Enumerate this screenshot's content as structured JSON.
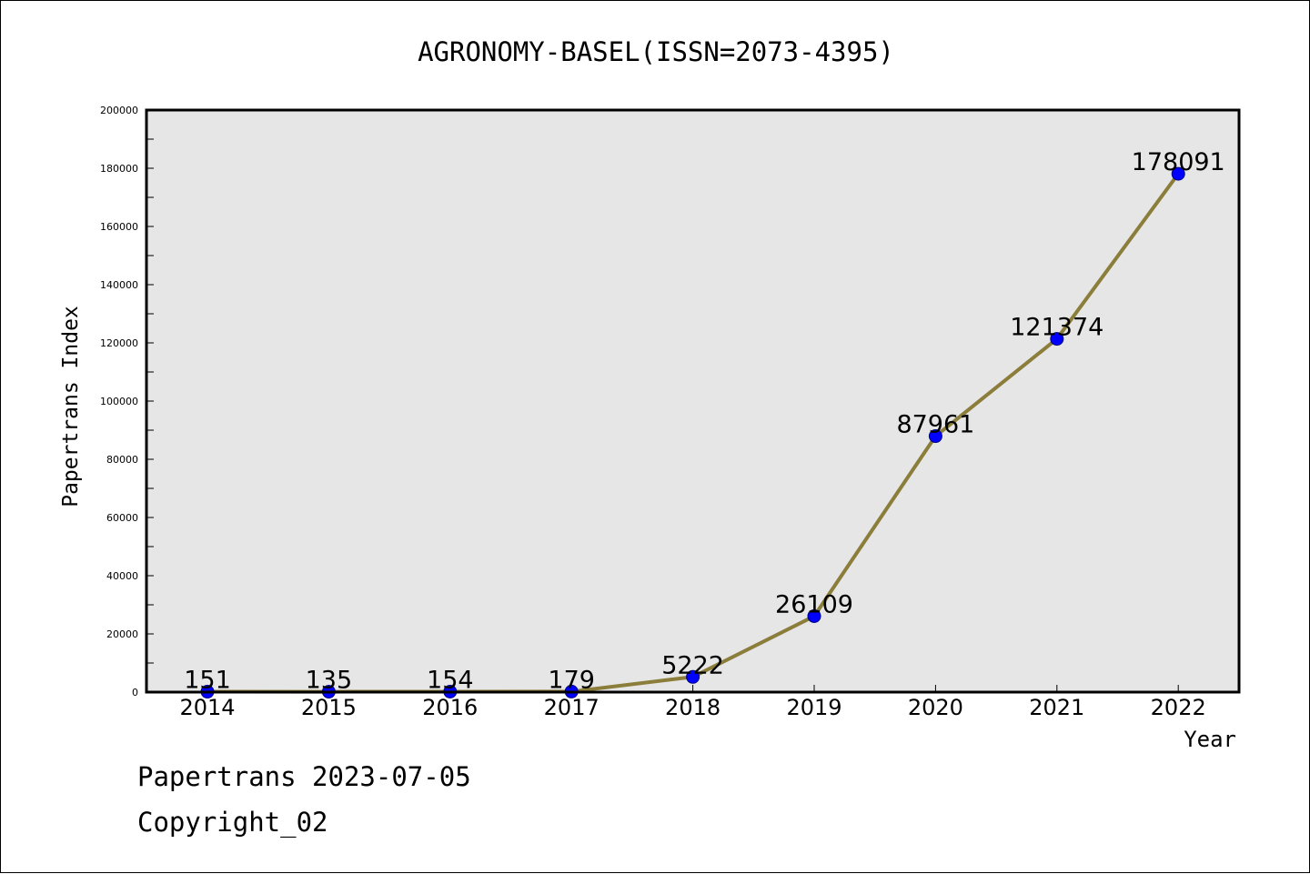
{
  "chart_data": {
    "type": "line",
    "title": "AGRONOMY-BASEL(ISSN=2073-4395)",
    "xlabel": "Year",
    "ylabel": "Papertrans Index",
    "x": [
      "2014",
      "2015",
      "2016",
      "2017",
      "2018",
      "2019",
      "2020",
      "2021",
      "2022"
    ],
    "series": [
      {
        "values": [
          151,
          135,
          154,
          179,
          5222,
          26109,
          87961,
          121374,
          178091
        ]
      }
    ],
    "data_labels": [
      "151",
      "135",
      "154",
      "179",
      "5222",
      "26109",
      "87961",
      "121374",
      "178091"
    ],
    "yticks": [
      "0",
      "20000",
      "40000",
      "60000",
      "80000",
      "100000",
      "120000",
      "140000",
      "160000",
      "180000",
      "200000"
    ],
    "ylim": [
      0,
      200000
    ],
    "grid": false,
    "legend": "none",
    "colors": {
      "plot_background": "#e6e6e6",
      "line": "#8b7d3a",
      "marker": "#0000ff",
      "marker_edge": "#000080"
    }
  },
  "footer": {
    "date_line": "Papertrans 2023-07-05",
    "copyright_line": "Copyright_02"
  }
}
